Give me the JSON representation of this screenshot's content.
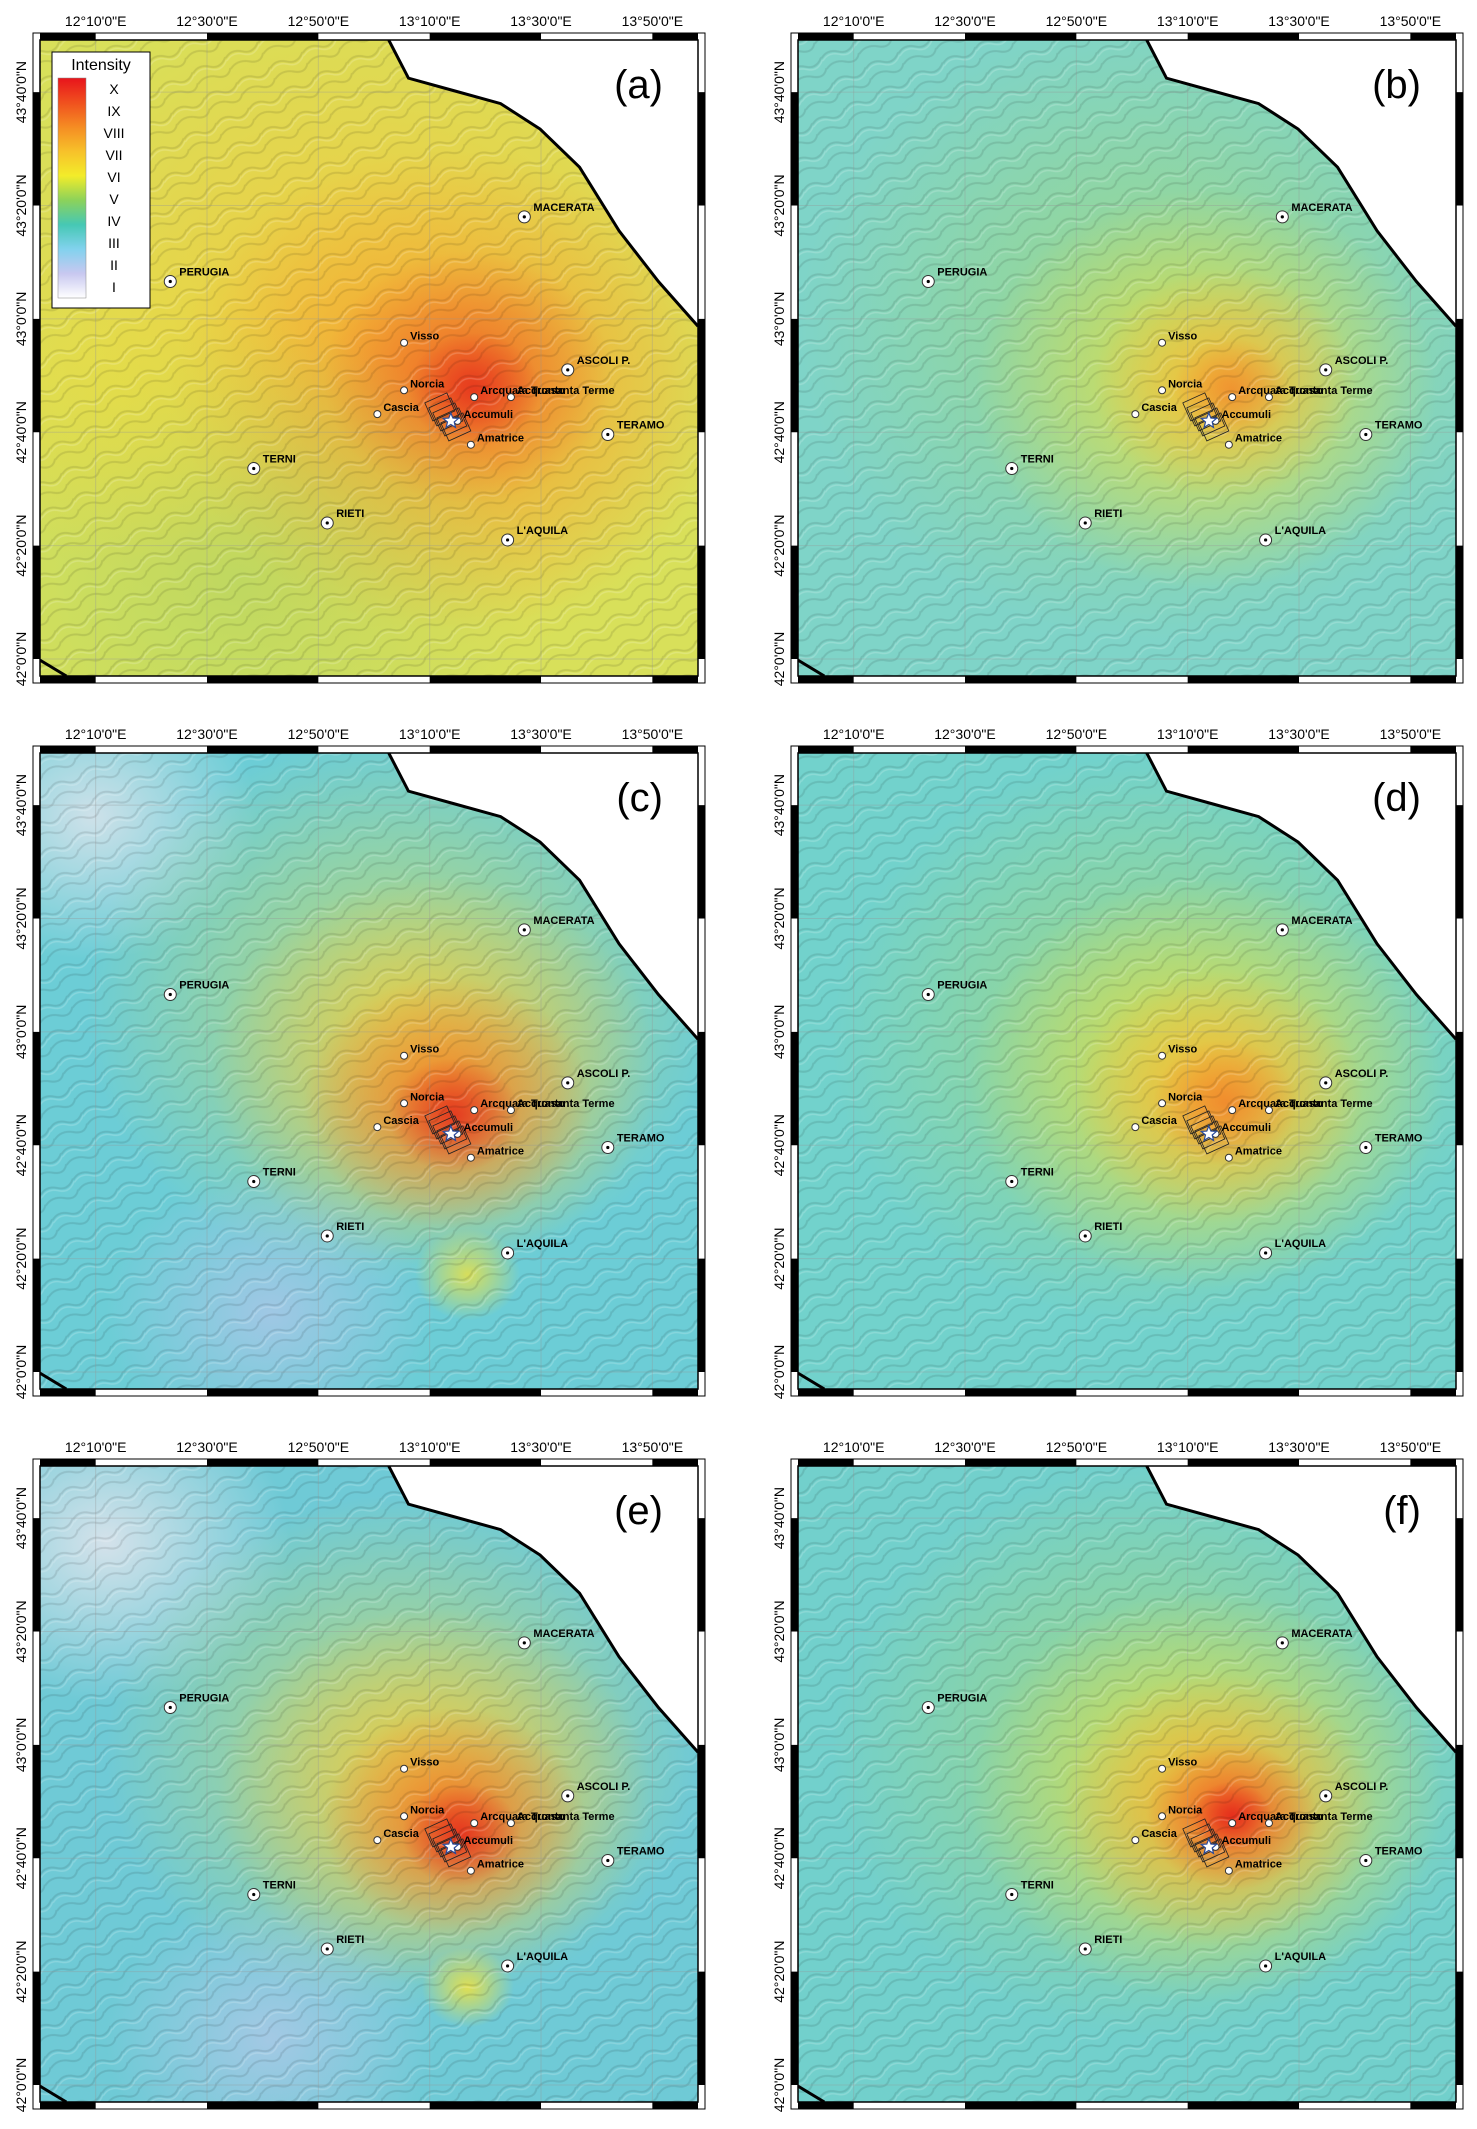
{
  "figure": {
    "longitude_ticks": [
      "12°10'0\"E",
      "12°30'0\"E",
      "12°50'0\"E",
      "13°10'0\"E",
      "13°30'0\"E",
      "13°50'0\"E"
    ],
    "latitude_ticks": [
      "43°40'0\"N",
      "43°20'0\"N",
      "43°0'0\"N",
      "42°40'0\"N",
      "42°20'0\"N",
      "42°0'0\"N"
    ],
    "legend": {
      "title": "Intensity",
      "classes": [
        {
          "label": "X",
          "color": "#e8141c"
        },
        {
          "label": "IX",
          "color": "#f0501e"
        },
        {
          "label": "VIII",
          "color": "#f58c23"
        },
        {
          "label": "VII",
          "color": "#f7c12a"
        },
        {
          "label": "VI",
          "color": "#f3ec2a"
        },
        {
          "label": "V",
          "color": "#8cd25a"
        },
        {
          "label": "IV",
          "color": "#46c8b4"
        },
        {
          "label": "III",
          "color": "#82d2ee"
        },
        {
          "label": "II",
          "color": "#c8c8f0"
        },
        {
          "label": "I",
          "color": "#ffffff"
        }
      ]
    },
    "cities": [
      {
        "name": "MACERATA",
        "lon": 13.45,
        "lat": 43.3
      },
      {
        "name": "PERUGIA",
        "lon": 12.39,
        "lat": 43.11
      },
      {
        "name": "Visso",
        "lon": 13.09,
        "lat": 42.93
      },
      {
        "name": "ASCOLI P.",
        "lon": 13.58,
        "lat": 42.85
      },
      {
        "name": "Norcia",
        "lon": 13.09,
        "lat": 42.79
      },
      {
        "name": "Arcquata Tronto",
        "lon": 13.3,
        "lat": 42.77
      },
      {
        "name": "Acquasanta Terme",
        "lon": 13.41,
        "lat": 42.77
      },
      {
        "name": "Cascia",
        "lon": 13.01,
        "lat": 42.72
      },
      {
        "name": "Accumuli",
        "lon": 13.25,
        "lat": 42.7
      },
      {
        "name": "TERAMO",
        "lon": 13.7,
        "lat": 42.66
      },
      {
        "name": "Amatrice",
        "lon": 13.29,
        "lat": 42.63
      },
      {
        "name": "TERNI",
        "lon": 12.64,
        "lat": 42.56
      },
      {
        "name": "RIETI",
        "lon": 12.86,
        "lat": 42.4
      },
      {
        "name": "L'AQUILA",
        "lon": 13.4,
        "lat": 42.35
      }
    ],
    "epicenter": {
      "name": "epicenter",
      "lon": 13.23,
      "lat": 42.7
    },
    "panels": [
      {
        "id": "(a)",
        "scenario": "broad"
      },
      {
        "id": "(b)",
        "scenario": "low"
      },
      {
        "id": "(c)",
        "scenario": "patchy"
      },
      {
        "id": "(d)",
        "scenario": "medium"
      },
      {
        "id": "(e)",
        "scenario": "patchy2"
      },
      {
        "id": "(f)",
        "scenario": "peak"
      }
    ]
  }
}
